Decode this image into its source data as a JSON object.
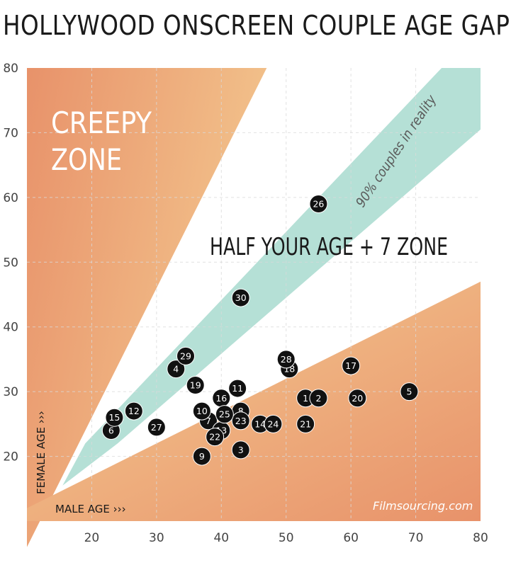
{
  "title": "HOLLYWOOD ONSCREEN COUPLE AGE GAPS",
  "zones": {
    "creepy_line1": "CREEPY",
    "creepy_line2": "ZONE",
    "half_age": "HALF YOUR AGE + 7 ZONE",
    "reality": "90% couples in reality"
  },
  "watermark": "Filmsourcing.com",
  "colors": {
    "orange_dark": "#e8926a",
    "orange_light": "#f2c48c",
    "teal": "#b5e0d6",
    "marker": "#111111",
    "marker_text": "#ffffff",
    "grid": "#d9d9d9"
  },
  "chart_data": {
    "type": "scatter",
    "title": "HOLLYWOOD ONSCREEN COUPLE AGE GAPS",
    "xlabel": "MALE AGE ›››",
    "ylabel": "FEMALE AGE ›››",
    "xlim": [
      10,
      80
    ],
    "ylim": [
      10,
      80
    ],
    "xticks": [
      20,
      30,
      40,
      50,
      60,
      70,
      80
    ],
    "yticks": [
      20,
      30,
      40,
      50,
      60,
      70,
      80
    ],
    "grid": true,
    "points": [
      {
        "label": "1",
        "x": 53,
        "y": 29
      },
      {
        "label": "2",
        "x": 55,
        "y": 29
      },
      {
        "label": "3",
        "x": 43,
        "y": 21
      },
      {
        "label": "4",
        "x": 33,
        "y": 33.5
      },
      {
        "label": "5",
        "x": 69,
        "y": 30
      },
      {
        "label": "6",
        "x": 23,
        "y": 24
      },
      {
        "label": "7",
        "x": 38,
        "y": 25.5
      },
      {
        "label": "8",
        "x": 43,
        "y": 27
      },
      {
        "label": "9",
        "x": 37,
        "y": 20
      },
      {
        "label": "10",
        "x": 37,
        "y": 27
      },
      {
        "label": "11",
        "x": 42.5,
        "y": 30.5
      },
      {
        "label": "12",
        "x": 26.5,
        "y": 27
      },
      {
        "label": "13",
        "x": 40,
        "y": 24
      },
      {
        "label": "14",
        "x": 46,
        "y": 25
      },
      {
        "label": "15",
        "x": 23.5,
        "y": 26
      },
      {
        "label": "16",
        "x": 40,
        "y": 29
      },
      {
        "label": "17",
        "x": 60,
        "y": 34
      },
      {
        "label": "18",
        "x": 50.5,
        "y": 33.5
      },
      {
        "label": "19",
        "x": 36,
        "y": 31
      },
      {
        "label": "20",
        "x": 61,
        "y": 29
      },
      {
        "label": "21",
        "x": 53,
        "y": 25
      },
      {
        "label": "22",
        "x": 39,
        "y": 23
      },
      {
        "label": "23",
        "x": 43,
        "y": 25.5
      },
      {
        "label": "24",
        "x": 48,
        "y": 25
      },
      {
        "label": "25",
        "x": 40.5,
        "y": 26.5
      },
      {
        "label": "26",
        "x": 55,
        "y": 59
      },
      {
        "label": "27",
        "x": 30,
        "y": 24.5
      },
      {
        "label": "28",
        "x": 50,
        "y": 35
      },
      {
        "label": "29",
        "x": 34.5,
        "y": 35.5
      },
      {
        "label": "30",
        "x": 43,
        "y": 44.5
      }
    ]
  }
}
